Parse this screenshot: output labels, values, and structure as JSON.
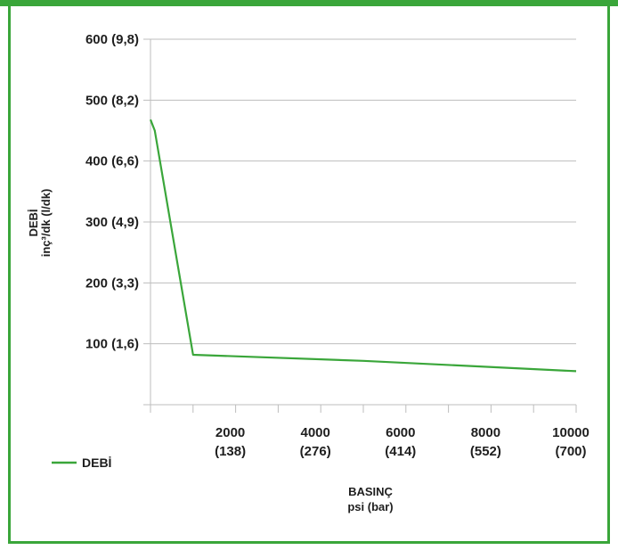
{
  "colors": {
    "accent": "#3aa63a",
    "grid": "#bdbdbd",
    "text": "#1e1e1e"
  },
  "chart_data": {
    "type": "line",
    "xlabel": [
      "BASINÇ",
      "psi (bar)"
    ],
    "ylabel": [
      "DEBİ",
      "inç³/dk (l/dk)"
    ],
    "xlim": [
      0,
      10000
    ],
    "ylim": [
      0,
      600
    ],
    "y_ticks": [
      {
        "value": 100,
        "label": "100 (1,6)"
      },
      {
        "value": 200,
        "label": "200 (3,3)"
      },
      {
        "value": 300,
        "label": "300 (4,9)"
      },
      {
        "value": 400,
        "label": "400 (6,6)"
      },
      {
        "value": 500,
        "label": "500 (8,2)"
      },
      {
        "value": 600,
        "label": "600 (9,8)"
      }
    ],
    "x_ticks": [
      {
        "value": 2000,
        "label": [
          "2000",
          "(138)"
        ]
      },
      {
        "value": 4000,
        "label": [
          "4000",
          "(276)"
        ]
      },
      {
        "value": 6000,
        "label": [
          "6000",
          "(414)"
        ]
      },
      {
        "value": 8000,
        "label": [
          "8000",
          "(552)"
        ]
      },
      {
        "value": 10000,
        "label": [
          "10000",
          "(700)"
        ]
      }
    ],
    "x_minor_ticks": [
      0,
      1000,
      3000,
      5000,
      7000,
      9000
    ],
    "grid": "horizontal",
    "legend_position": "bottom-left",
    "series": [
      {
        "name": "DEBİ",
        "x": [
          0,
          100,
          1000,
          5000,
          10000
        ],
        "y": [
          468,
          450,
          82,
          72,
          55
        ]
      }
    ]
  }
}
